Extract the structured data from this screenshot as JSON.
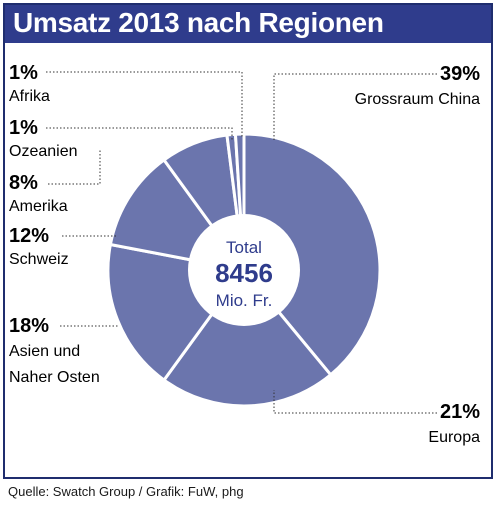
{
  "title": "Umsatz 2013 nach Regionen",
  "source": "Quelle: Swatch Group / Grafik: FuW, phg",
  "center": {
    "line1": "Total",
    "line2": "8456",
    "line3": "Mio. Fr."
  },
  "colors": {
    "title_bg": "#2f3c8c",
    "slice": "#6b75ad",
    "text_center": "#2f3c8c"
  },
  "chart_data": {
    "type": "pie",
    "total": 8456,
    "unit": "Mio. Fr.",
    "slices": [
      {
        "label": "Grossraum China",
        "value": 39,
        "display": "39%"
      },
      {
        "label": "Europa",
        "value": 21,
        "display": "21%"
      },
      {
        "label": "Asien und Naher Osten",
        "value": 18,
        "display": "18%"
      },
      {
        "label": "Schweiz",
        "value": 12,
        "display": "12%"
      },
      {
        "label": "Amerika",
        "value": 8,
        "display": "8%"
      },
      {
        "label": "Ozeanien",
        "value": 1,
        "display": "1%"
      },
      {
        "label": "Afrika",
        "value": 1,
        "display": "1%"
      }
    ]
  }
}
